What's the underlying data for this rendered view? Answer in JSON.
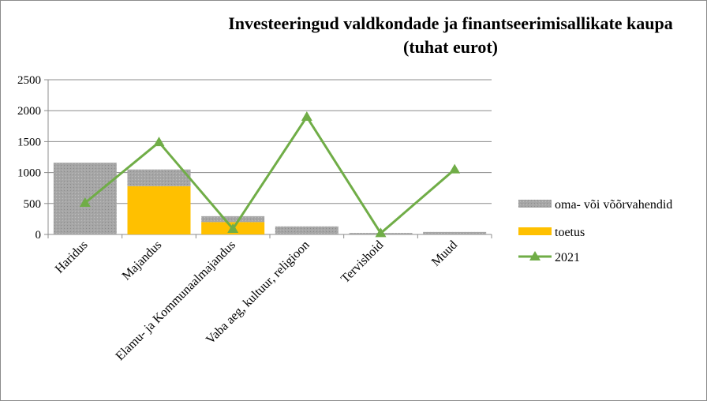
{
  "chart_data": {
    "type": "bar",
    "title": "Investeeringud valdkondade ja finantseerimisallikate kaupa (tuhat eurot)",
    "title_lines": [
      "Investeeringud valdkondade ja finantseerimisallikate kaupa",
      "(tuhat eurot)"
    ],
    "categories": [
      "Haridus",
      "Majandus",
      "Elamu- ja Kommunaalmajandus",
      "Vaba aeg, kultuur, religioon",
      "Tervishoid",
      "Muud"
    ],
    "stacked": true,
    "series": [
      {
        "name": "oma- või võõrvahendid",
        "kind": "bar",
        "color": "#a6a6a6",
        "values": [
          1160,
          270,
          95,
          130,
          25,
          40
        ]
      },
      {
        "name": "toetus",
        "kind": "bar",
        "color": "#ffc000",
        "values": [
          0,
          780,
          200,
          0,
          0,
          0
        ]
      },
      {
        "name": "2021",
        "kind": "line",
        "color": "#70ad47",
        "marker": "triangle",
        "values": [
          510,
          1490,
          90,
          1900,
          20,
          1050
        ]
      }
    ],
    "ylim": [
      0,
      2500
    ],
    "yticks": [
      0,
      500,
      1000,
      1500,
      2000,
      2500
    ],
    "ytick_labels": [
      "0",
      "500",
      "1000",
      "1500",
      "2000",
      "2500"
    ],
    "grid": true,
    "legend_position": "right"
  }
}
